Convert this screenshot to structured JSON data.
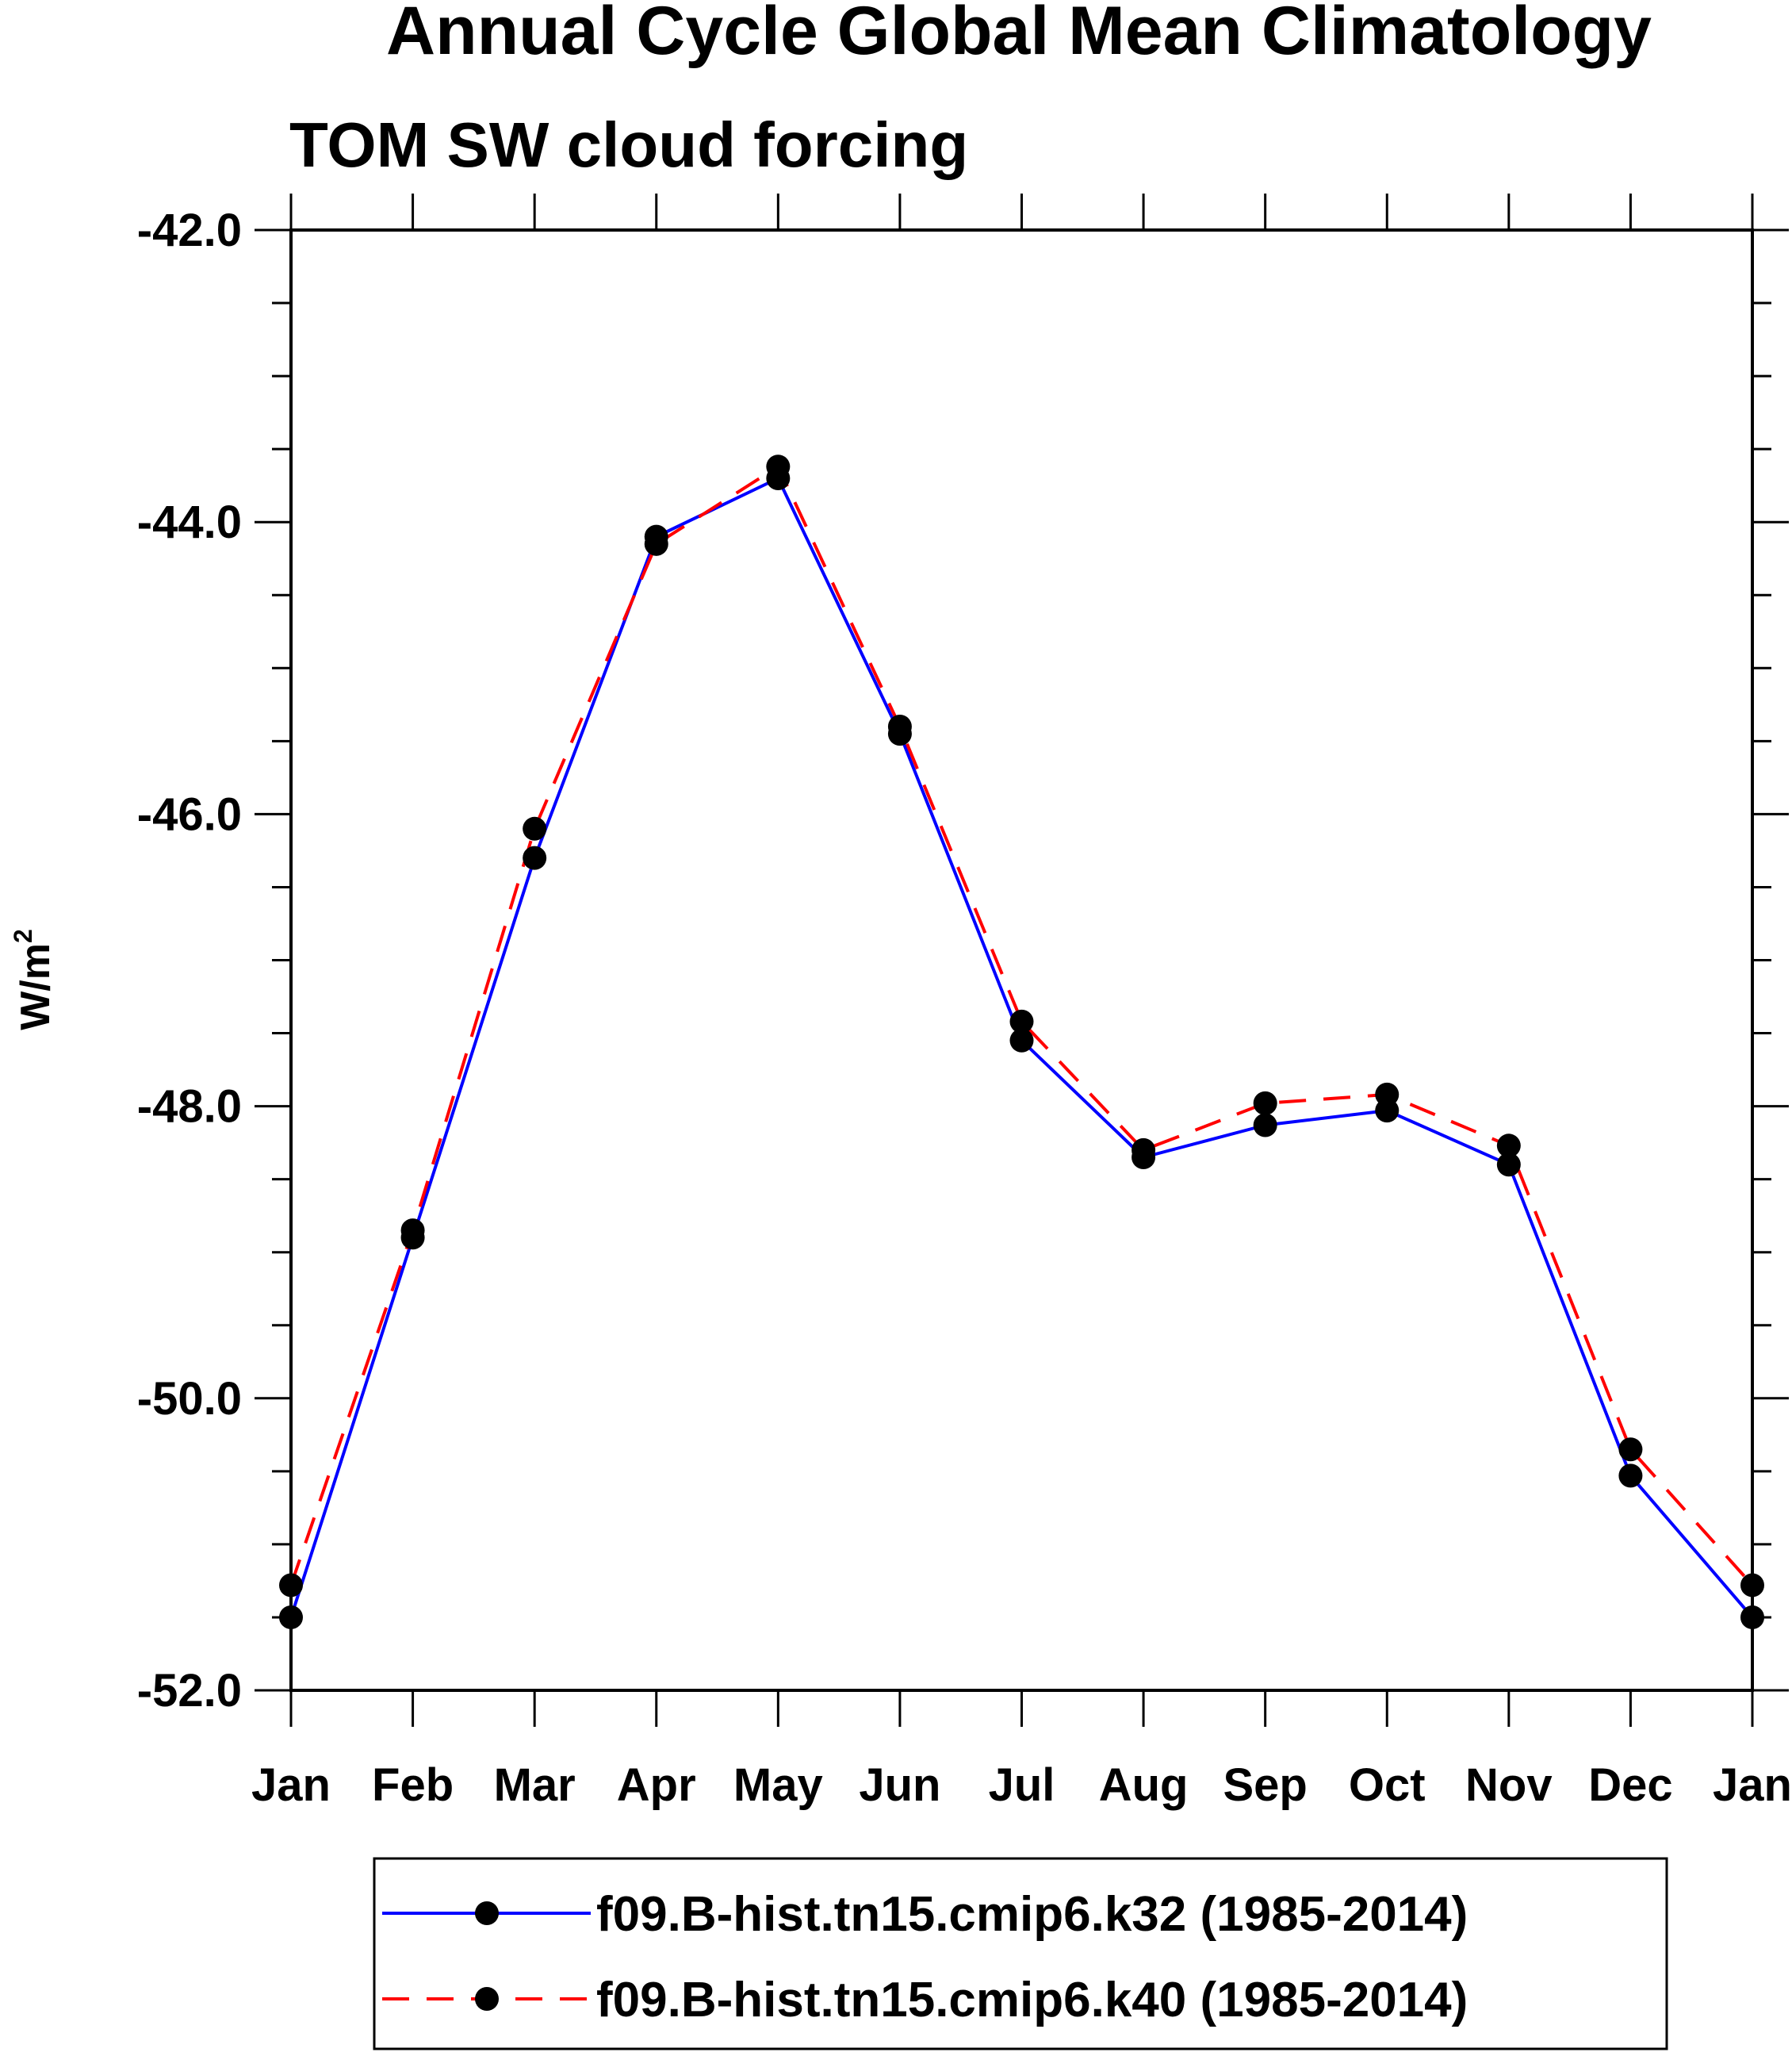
{
  "chart_data": {
    "type": "line",
    "title": "Annual Cycle Global Mean Climatology",
    "subtitle": "TOM SW cloud forcing",
    "ylabel": "W/m",
    "ylabel_superscript": "2",
    "categories": [
      "Jan",
      "Feb",
      "Mar",
      "Apr",
      "May",
      "Jun",
      "Jul",
      "Aug",
      "Sep",
      "Oct",
      "Nov",
      "Dec",
      "Jan"
    ],
    "ylim": [
      -52.0,
      -42.0
    ],
    "yticks": [
      -52.0,
      -50.0,
      -48.0,
      -46.0,
      -44.0,
      -42.0
    ],
    "ytick_labels": [
      "-52.0",
      "-50.0",
      "-48.0",
      "-46.0",
      "-44.0",
      "-42.0"
    ],
    "series": [
      {
        "name": "f09.B-hist.tn15.cmip6.k32 (1985-2014)",
        "color": "#0000ff",
        "dash": "solid",
        "marker": "circle",
        "values": [
          -51.5,
          -48.9,
          -46.3,
          -44.1,
          -43.7,
          -45.45,
          -47.55,
          -48.35,
          -48.13,
          -48.03,
          -48.4,
          -50.53,
          -51.5
        ]
      },
      {
        "name": "f09.B-hist.tn15.cmip6.k40 (1985-2014)",
        "color": "#ff0000",
        "dash": "dashed",
        "marker": "circle",
        "values": [
          -51.28,
          -48.85,
          -46.1,
          -44.15,
          -43.62,
          -45.4,
          -47.42,
          -48.3,
          -47.98,
          -47.92,
          -48.27,
          -50.35,
          -51.28
        ]
      }
    ],
    "legend_position": "bottom"
  }
}
